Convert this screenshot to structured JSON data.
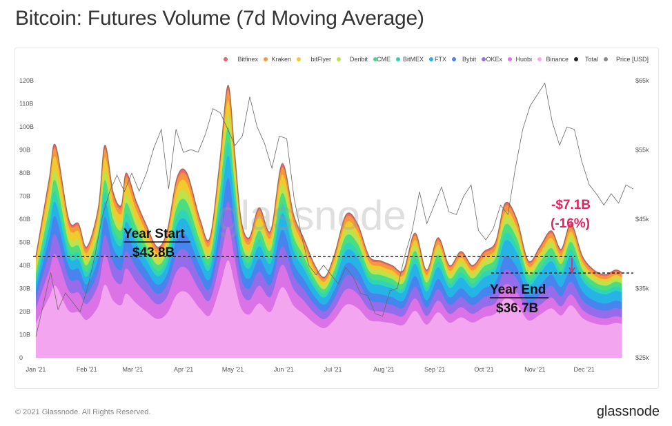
{
  "title": "Bitcoin: Futures Volume (7d Moving Average)",
  "footer": {
    "copyright": "© 2021 Glassnode. All Rights Reserved.",
    "logo": "glassnode",
    "watermark": "glassnode"
  },
  "chart_data": {
    "type": "area",
    "stacked": true,
    "legend_position": "top-right",
    "legend": [
      {
        "name": "Bitfinex",
        "color": "#f25b6b"
      },
      {
        "name": "Kraken",
        "color": "#f5993a"
      },
      {
        "name": "bitFlyer",
        "color": "#f0cc2e"
      },
      {
        "name": "Deribit",
        "color": "#b9e34d"
      },
      {
        "name": "CME",
        "color": "#44dc82"
      },
      {
        "name": "BitMEX",
        "color": "#2ed4b8"
      },
      {
        "name": "FTX",
        "color": "#26b2ea"
      },
      {
        "name": "Bybit",
        "color": "#4a82ee"
      },
      {
        "name": "OKEx",
        "color": "#9a6cea"
      },
      {
        "name": "Huobi",
        "color": "#de74e6"
      },
      {
        "name": "Binance",
        "color": "#f6a8f0"
      },
      {
        "name": "Total",
        "color": "#222222"
      },
      {
        "name": "Price [USD]",
        "color": "#888888"
      }
    ],
    "x_ticks": [
      "Jan '21",
      "Feb '21",
      "Mar '21",
      "Apr '21",
      "May '21",
      "Jun '21",
      "Jul '21",
      "Aug '21",
      "Sep '21",
      "Oct '21",
      "Nov '21",
      "Dec '21"
    ],
    "y_left": {
      "min": 0,
      "max": 120,
      "ticks": [
        "0",
        "10B",
        "20B",
        "30B",
        "40B",
        "50B",
        "60B",
        "70B",
        "80B",
        "90B",
        "100B",
        "110B",
        "120B"
      ]
    },
    "y_right": {
      "min": 25,
      "max": 65,
      "ticks": [
        "$25k",
        "$35k",
        "$45k",
        "$55k",
        "$65k"
      ],
      "scale": "linear"
    },
    "x_days": [
      0,
      8,
      12,
      20,
      26,
      31,
      38,
      42,
      47,
      52,
      55,
      61,
      67,
      74,
      80,
      86,
      92,
      100,
      106,
      112,
      117,
      121,
      125,
      130,
      136,
      143,
      150,
      157,
      163,
      170,
      176,
      182,
      189,
      196,
      203,
      210,
      217,
      224,
      231,
      238,
      245,
      252,
      259,
      266,
      273,
      280,
      286,
      293,
      300,
      307,
      314,
      320,
      326,
      333,
      340,
      347,
      353,
      357
    ],
    "total_volume": [
      44,
      77,
      92,
      60,
      58,
      48,
      65,
      92,
      72,
      66,
      80,
      68,
      58,
      48,
      55,
      78,
      80,
      60,
      52,
      85,
      118,
      90,
      60,
      52,
      65,
      55,
      84,
      62,
      52,
      40,
      35,
      45,
      62,
      58,
      44,
      42,
      40,
      38,
      54,
      38,
      52,
      40,
      46,
      40,
      46,
      50,
      67,
      60,
      42,
      48,
      55,
      47,
      58,
      44,
      38,
      36,
      38,
      37
    ],
    "annotations": {
      "year_start": {
        "label": "Year Start",
        "value": "$43.8B"
      },
      "year_end": {
        "label": "Year End",
        "value": "$36.7B"
      },
      "change": {
        "amount": "-$7.1B",
        "percent": "(-16%)"
      }
    }
  }
}
